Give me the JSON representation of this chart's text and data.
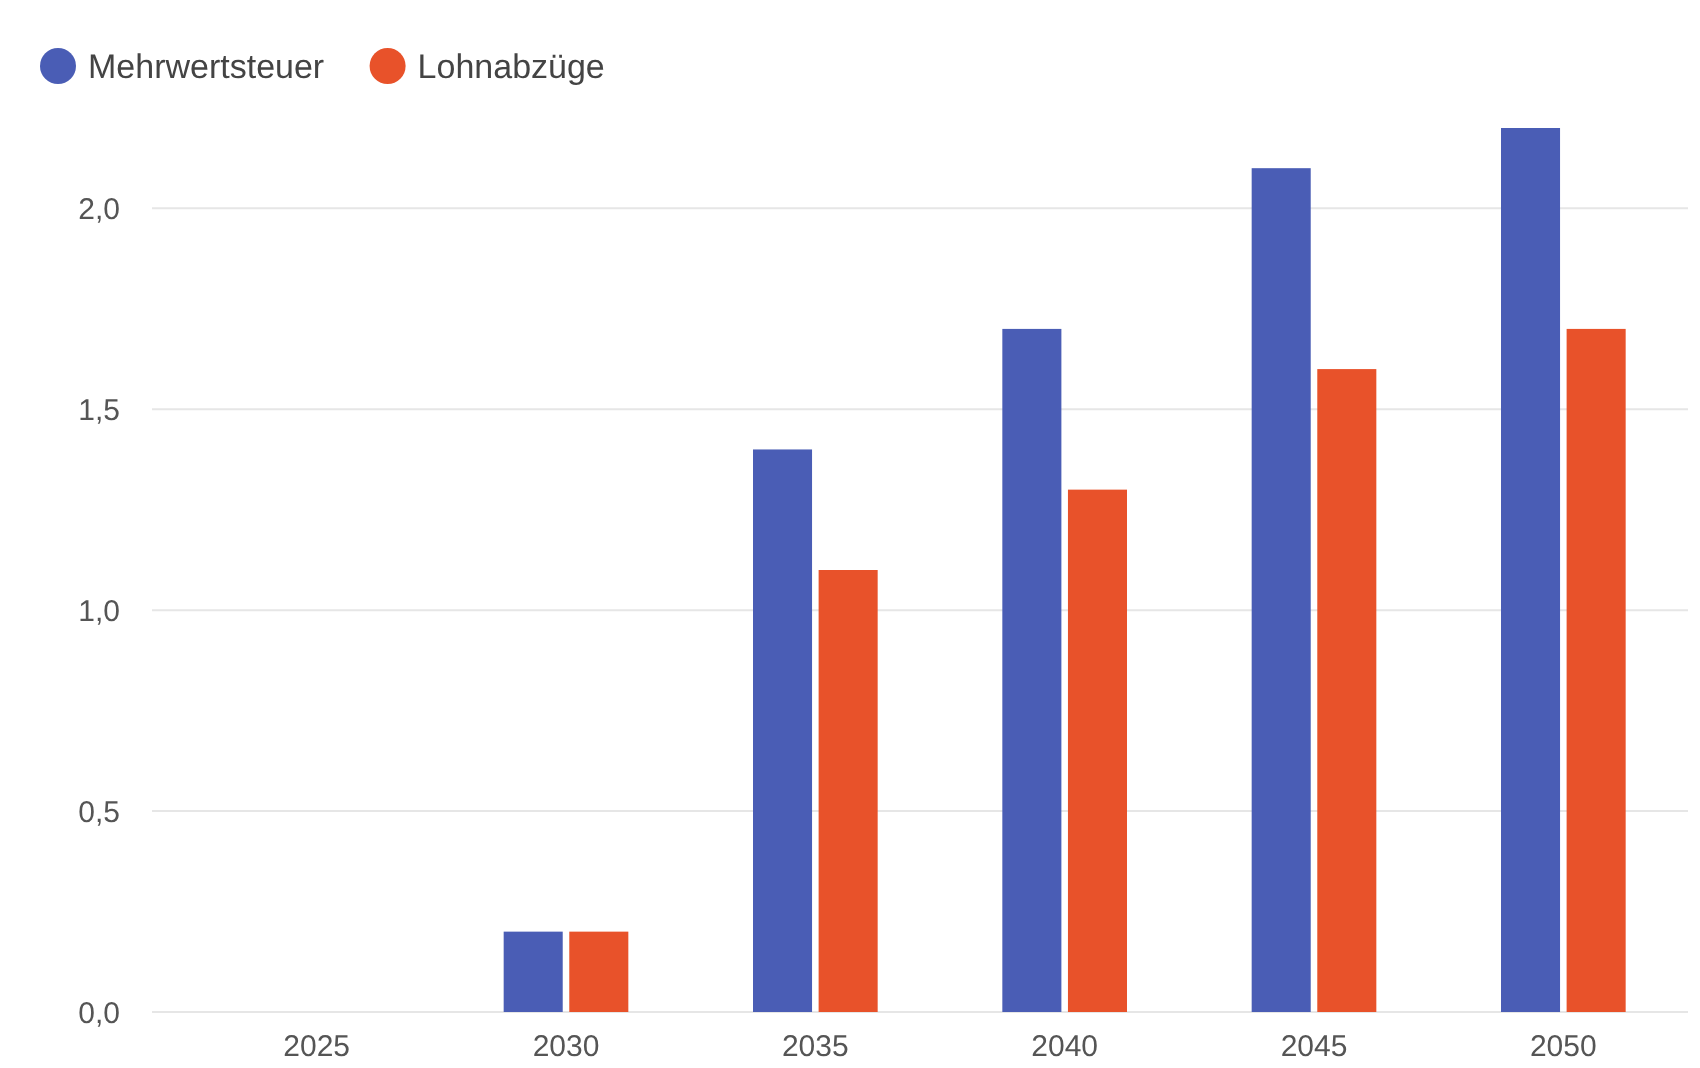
{
  "chart_data": {
    "type": "bar",
    "categories": [
      "2025",
      "2030",
      "2035",
      "2040",
      "2045",
      "2050"
    ],
    "series": [
      {
        "name": "Mehrwertsteuer",
        "color": "#4a5db5",
        "values": [
          0,
          0.2,
          1.4,
          1.7,
          2.1,
          2.2
        ]
      },
      {
        "name": "Lohnabzüge",
        "color": "#e8522a",
        "values": [
          0,
          0.2,
          1.1,
          1.3,
          1.6,
          1.7
        ]
      }
    ],
    "ylim": [
      0,
      2.2
    ],
    "yticks": [
      {
        "value": 0,
        "label": "0,0"
      },
      {
        "value": 0.5,
        "label": "0,5"
      },
      {
        "value": 1,
        "label": "1,0"
      },
      {
        "value": 1.5,
        "label": "1,5"
      },
      {
        "value": 2,
        "label": "2,0"
      }
    ],
    "grid": "y",
    "legend": "top left"
  }
}
